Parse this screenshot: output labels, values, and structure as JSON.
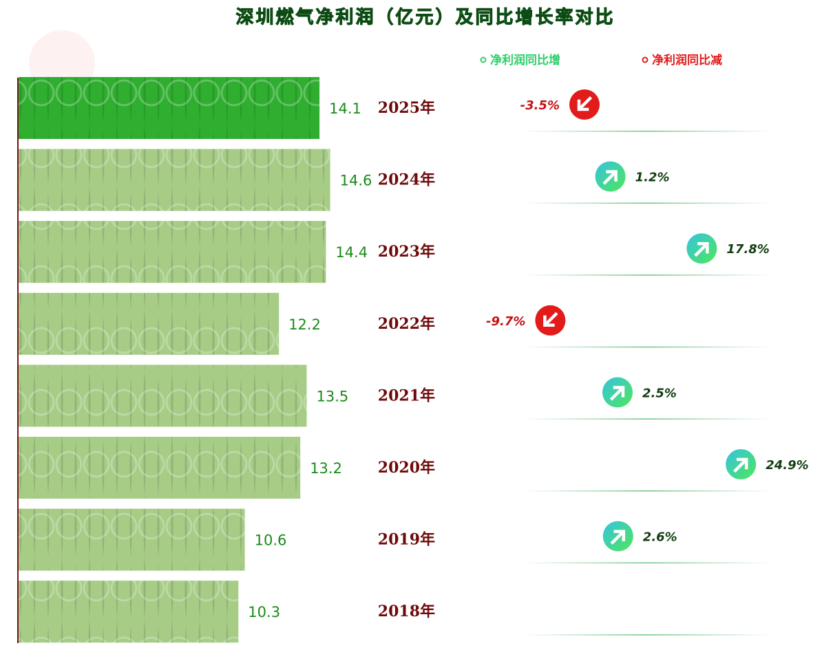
{
  "chart_data": {
    "type": "bar",
    "title": "深圳燃气净利润（亿元）及同比增长率对比",
    "categories": [
      "2025年",
      "2024年",
      "2023年",
      "2022年",
      "2021年",
      "2020年",
      "2019年",
      "2018年"
    ],
    "series": [
      {
        "name": "净利润",
        "colors": [
          "#2fae2f",
          "#a6cc86",
          "#a6cc86",
          "#a6cc86",
          "#a6cc86",
          "#a6cc86",
          "#a6cc86",
          "#a6cc86"
        ],
        "values": [
          14.1,
          14.6,
          14.4,
          12.2,
          13.5,
          13.2,
          10.6,
          10.3
        ]
      },
      {
        "name": "同比增长率",
        "axis": "x2",
        "values": [
          -3.5,
          1.2,
          17.8,
          -9.7,
          2.5,
          24.9,
          2.6,
          null
        ],
        "value_labels": [
          "-3.5%",
          "1.2%",
          "17.8%",
          "-9.7%",
          "2.5%",
          "24.9%",
          "2.6%",
          null
        ]
      }
    ],
    "xlim": [
      0,
      15
    ],
    "x2lim": [
      -15,
      30
    ],
    "legend": [
      {
        "name": "净利润同比增",
        "color": "#2ecf6a"
      },
      {
        "name": "净利润同比减",
        "color": "#e21b1b"
      }
    ]
  }
}
